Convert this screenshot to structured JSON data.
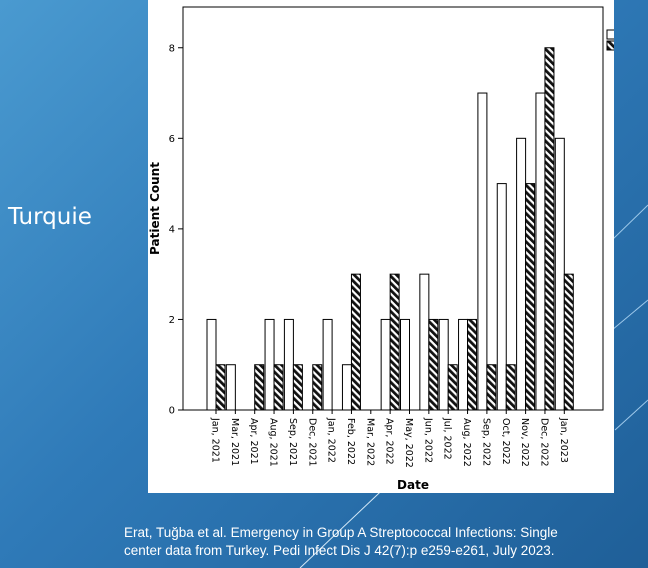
{
  "slide": {
    "side_title": "Turquie",
    "citation_line1": "Erat, Tuğba et al. Emergency in Group A Streptococcal Infections: Single",
    "citation_line2": "center data from Turkey. Pedi Infect Dis J 42(7):p e259-e261, July 2023."
  },
  "colors": {
    "background": "#2f7ab8",
    "bar_outline": "#000000",
    "igas_fill": "#ffffff",
    "ssti_fill": "hatched-black"
  },
  "chart_data": {
    "type": "bar",
    "xlabel": "Date",
    "ylabel": "Patient Count",
    "ylim": [
      0,
      8.9
    ],
    "yticks": [
      0,
      2,
      4,
      6,
      8
    ],
    "grid": false,
    "legend_position": "top-right",
    "categories": [
      "Jan, 2021",
      "Mar, 2021",
      "Apr, 2021",
      "Aug, 2021",
      "Sep, 2021",
      "Dec, 2021",
      "Jan, 2022",
      "Feb, 2022",
      "Mar, 2022",
      "Apr, 2022",
      "May, 2022",
      "Jun, 2022",
      "Jul, 2022",
      "Aug, 2022",
      "Sep, 2022",
      "Oct, 2022",
      "Nov, 2022",
      "Dec, 2022",
      "Jan, 2023"
    ],
    "series": [
      {
        "name": "igas",
        "values": [
          2,
          1,
          0,
          2,
          2,
          0,
          2,
          1,
          0,
          2,
          2,
          3,
          2,
          2,
          7,
          5,
          6,
          7,
          6
        ]
      },
      {
        "name": "ssti",
        "values": [
          1,
          0,
          1,
          1,
          1,
          1,
          0,
          3,
          0,
          3,
          0,
          2,
          1,
          2,
          1,
          1,
          5,
          8,
          3
        ]
      }
    ]
  }
}
